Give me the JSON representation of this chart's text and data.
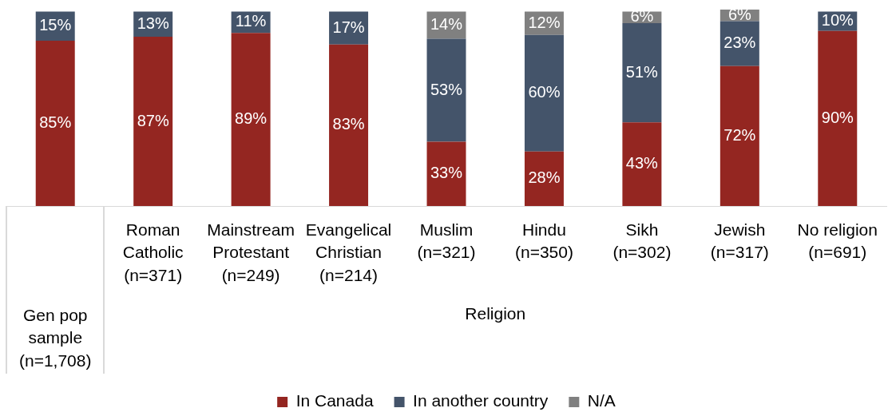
{
  "chart_data": {
    "type": "bar",
    "stacked": true,
    "categories": [
      null,
      "Roman Catholic (n=371)",
      "Mainstream Protestant (n=249)",
      "Evangelical Christian (n=214)",
      "Muslim (n=321)",
      "Hindu (n=350)",
      "Sikh (n=302)",
      "Jewish (n=317)",
      "No religion (n=691)"
    ],
    "xlabel": "Religion",
    "annotations": [
      "Gen pop sample (n=1,708)"
    ],
    "series": [
      {
        "name": "In Canada",
        "color": "#942621",
        "values": [
          85,
          87,
          89,
          83,
          33,
          28,
          43,
          72,
          90
        ],
        "value_labels": [
          "85%",
          "87%",
          "89%",
          "83%",
          "33%",
          "28%",
          "43%",
          "72%",
          "90%"
        ]
      },
      {
        "name": "In another country",
        "color": "#44546a",
        "values": [
          15,
          13,
          11,
          17,
          53,
          60,
          51,
          23,
          10
        ],
        "value_labels": [
          "15%",
          "13%",
          "11%",
          "17%",
          "53%",
          "60%",
          "51%",
          "23%",
          "10%"
        ]
      },
      {
        "name": "N/A",
        "color": "#808080",
        "values": [
          null,
          null,
          null,
          null,
          14,
          12,
          6,
          6,
          null
        ],
        "value_labels": [
          null,
          null,
          null,
          null,
          "14%",
          "12%",
          "6%",
          "6%",
          null
        ]
      }
    ],
    "legend": "bottom"
  }
}
